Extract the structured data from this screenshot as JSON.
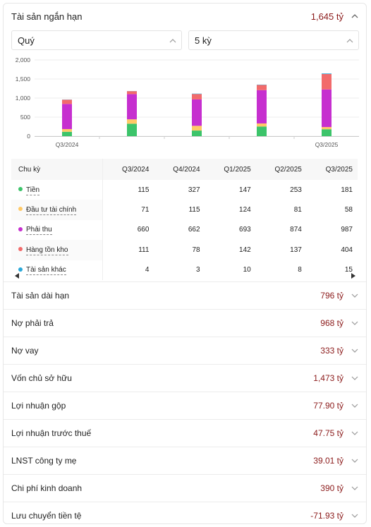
{
  "section": {
    "title": "Tài sản ngắn hạn",
    "value": "1,645 tỷ"
  },
  "filters": {
    "period": "Quý",
    "range": "5 kỳ"
  },
  "colors": {
    "tien": "#3cc46a",
    "dau_tu": "#ffc966",
    "phai_thu": "#c62fcf",
    "hang_ton_kho": "#f26b6b",
    "khac": "#2aa8d8",
    "value_text": "#8b1a1a"
  },
  "chart_data": {
    "type": "bar",
    "stacked": true,
    "categories": [
      "Q3/2024",
      "Q4/2024",
      "Q1/2025",
      "Q2/2025",
      "Q3/2025"
    ],
    "x_tick_labels": [
      "Q3/2024",
      "",
      "",
      "",
      "Q3/2025"
    ],
    "y_ticks": [
      "2,000",
      "1,500",
      "1,000",
      "500",
      "0"
    ],
    "ylim": [
      0,
      2000
    ],
    "series": [
      {
        "name": "Tiền",
        "values": [
          115,
          327,
          147,
          253,
          181
        ]
      },
      {
        "name": "Đầu tư tài chính",
        "values": [
          71,
          115,
          124,
          81,
          58
        ]
      },
      {
        "name": "Phải thu",
        "values": [
          660,
          662,
          693,
          874,
          987
        ]
      },
      {
        "name": "Hàng tồn kho",
        "values": [
          111,
          78,
          142,
          137,
          404
        ]
      },
      {
        "name": "Tài sản khác",
        "values": [
          4,
          3,
          10,
          8,
          15
        ]
      }
    ],
    "grid": true
  },
  "table": {
    "header": "Chu kỳ",
    "columns": [
      "Q3/2024",
      "Q4/2024",
      "Q1/2025",
      "Q2/2025",
      "Q3/2025"
    ],
    "rows": [
      {
        "label": "Tiền",
        "cells": [
          "115",
          "327",
          "147",
          "253",
          "181"
        ]
      },
      {
        "label": "Đầu tư tài chính",
        "cells": [
          "71",
          "115",
          "124",
          "81",
          "58"
        ]
      },
      {
        "label": "Phải thu",
        "cells": [
          "660",
          "662",
          "693",
          "874",
          "987"
        ]
      },
      {
        "label": "Hàng tồn kho",
        "cells": [
          "111",
          "78",
          "142",
          "137",
          "404"
        ]
      },
      {
        "label": "Tài sản khác",
        "cells": [
          "4",
          "3",
          "10",
          "8",
          "15"
        ]
      }
    ]
  },
  "items": [
    {
      "label": "Tài sản dài hạn",
      "value": "796 tỷ"
    },
    {
      "label": "Nợ phải trả",
      "value": "968 tỷ"
    },
    {
      "label": "Nợ vay",
      "value": "333 tỷ"
    },
    {
      "label": "Vốn chủ sở hữu",
      "value": "1,473 tỷ"
    },
    {
      "label": "Lợi nhuận gộp",
      "value": "77.90 tỷ"
    },
    {
      "label": "Lợi nhuận trước thuế",
      "value": "47.75 tỷ"
    },
    {
      "label": "LNST công ty mẹ",
      "value": "39.01 tỷ"
    },
    {
      "label": "Chi phí kinh doanh",
      "value": "390 tỷ"
    },
    {
      "label": "Lưu chuyển tiền tệ",
      "value": "-71.93 tỷ"
    }
  ]
}
